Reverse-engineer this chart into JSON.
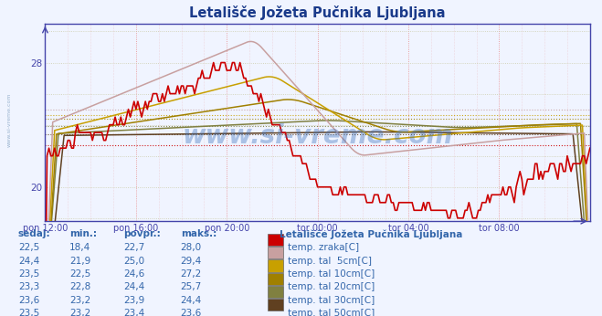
{
  "title": "Letališče Jožeta Pučnika Ljubljana",
  "title_color": "#1a3a8a",
  "bg_color": "#f0f4ff",
  "plot_bg_color": "#f0f4ff",
  "outer_bg_color": "#f0f4ff",
  "watermark": "www.si-vreme.com",
  "xlabel_ticks": [
    "pon 12:00",
    "pon 16:00",
    "pon 20:00",
    "tor 00:00",
    "tor 04:00",
    "tor 08:00"
  ],
  "ytick_positions": [
    20,
    28
  ],
  "ytick_labels": [
    "20",
    "28"
  ],
  "ylim": [
    17.8,
    30.5
  ],
  "xlim": [
    0,
    288
  ],
  "xtick_positions": [
    0,
    48,
    96,
    144,
    192,
    240
  ],
  "vgrid_color": "#e88888",
  "hgrid_color": "#ccccaa",
  "avg_dotted_color_zraka": "#e88888",
  "legend_colors": [
    "#cc0000",
    "#c8a0a0",
    "#c8a000",
    "#a08000",
    "#808040",
    "#604020"
  ],
  "legend_labels": [
    "temp. zraka[C]",
    "temp. tal  5cm[C]",
    "temp. tal 10cm[C]",
    "temp. tal 20cm[C]",
    "temp. tal 30cm[C]",
    "temp. tal 50cm[C]"
  ],
  "table_headers": [
    "sedaj:",
    "min.:",
    "povpr.:",
    "maks.:"
  ],
  "table_rows": [
    [
      "22,5",
      "18,4",
      "22,7",
      "28,0"
    ],
    [
      "24,4",
      "21,9",
      "25,0",
      "29,4"
    ],
    [
      "23,5",
      "22,5",
      "24,6",
      "27,2"
    ],
    [
      "23,3",
      "22,8",
      "24,4",
      "25,7"
    ],
    [
      "23,6",
      "23,2",
      "23,9",
      "24,4"
    ],
    [
      "23,5",
      "23,2",
      "23,4",
      "23,6"
    ]
  ],
  "legend_title": "Letališče Jožeta Pučnika Ljubljana",
  "axis_color": "#4444aa",
  "tick_color": "#4444aa",
  "table_text_color": "#3366aa"
}
